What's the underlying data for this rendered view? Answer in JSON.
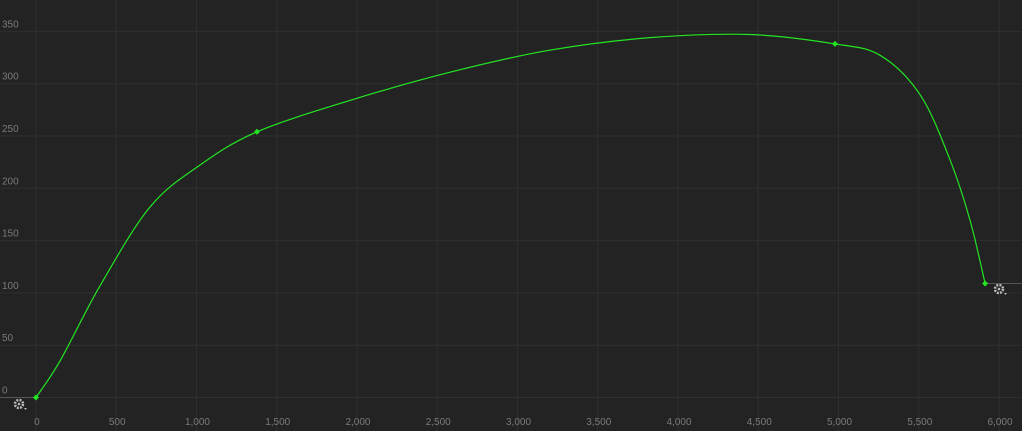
{
  "chart_data": {
    "type": "line",
    "xlim": [
      -224,
      6143
    ],
    "ylim": [
      -32,
      380
    ],
    "xticks": [
      0,
      500,
      {
        "value": 1000,
        "label": "1,000"
      },
      {
        "value": 1500,
        "label": "1,500"
      },
      {
        "value": 2000,
        "label": "2,000"
      },
      {
        "value": 2500,
        "label": "2,500"
      },
      {
        "value": 3000,
        "label": "3,000"
      },
      {
        "value": 3500,
        "label": "3,500"
      },
      {
        "value": 4000,
        "label": "4,000"
      },
      {
        "value": 4500,
        "label": "4,500"
      },
      {
        "value": 5000,
        "label": "5,000"
      },
      {
        "value": 5500,
        "label": "5,500"
      },
      {
        "value": 6000,
        "label": "6,000"
      }
    ],
    "yticks": [
      0,
      50,
      100,
      150,
      200,
      250,
      300,
      350
    ],
    "grid": true,
    "series": [
      {
        "color": "#22e622",
        "x": [
          0,
          150,
          400,
          710,
          1020,
          1377,
          1956,
          2580,
          3200,
          3825,
          4450,
          4978,
          5260,
          5510,
          5695,
          5820,
          5913
        ],
        "values": [
          0,
          35,
          107,
          182,
          222,
          254,
          284,
          311,
          332,
          344,
          347,
          338,
          327,
          289,
          227,
          169,
          109
        ]
      }
    ],
    "keyframes": {
      "color": "#22e622",
      "x": [
        0,
        1377,
        4978,
        5913
      ],
      "values": [
        0,
        254,
        338,
        109
      ]
    }
  }
}
